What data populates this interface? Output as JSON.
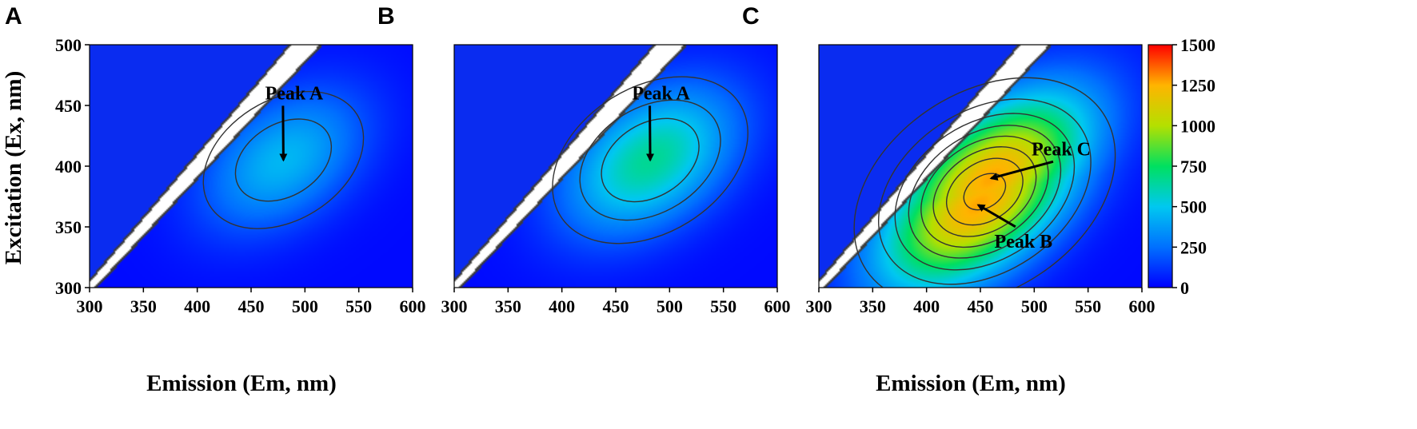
{
  "chart_data": [
    {
      "type": "heatmap",
      "panel_label": "A",
      "title": "",
      "xlabel": "Emission (Em, nm)",
      "ylabel": "Excitation (Ex, nm)",
      "xlim": [
        300,
        600
      ],
      "ylim": [
        300,
        500
      ],
      "xticks": [
        "300",
        "350",
        "400",
        "450",
        "500",
        "550",
        "600"
      ],
      "yticks": [
        "300",
        "350",
        "400",
        "450",
        "500"
      ],
      "peaks": [
        {
          "name": "Peak A",
          "em": 480,
          "ex": 405,
          "intensity": 430,
          "sigma_em": 52,
          "sigma_ex": 40,
          "tilt": 0.4,
          "label_em": 490,
          "label_ex": 455
        }
      ],
      "contour_levels": [
        150,
        300
      ]
    },
    {
      "type": "heatmap",
      "panel_label": "B",
      "title": "",
      "xlabel": "",
      "ylabel": "",
      "xlim": [
        300,
        600
      ],
      "ylim": [
        300,
        500
      ],
      "xticks": [
        "300",
        "350",
        "400",
        "450",
        "500",
        "550",
        "600"
      ],
      "yticks": [],
      "peaks": [
        {
          "name": "Peak A",
          "em": 482,
          "ex": 405,
          "intensity": 640,
          "sigma_em": 55,
          "sigma_ex": 42,
          "tilt": 0.4,
          "label_em": 492,
          "label_ex": 455
        }
      ],
      "contour_levels": [
        150,
        300,
        450
      ]
    },
    {
      "type": "heatmap",
      "panel_label": "C",
      "title": "",
      "xlabel": "Emission (Em, nm)",
      "ylabel": "",
      "xlim": [
        300,
        600
      ],
      "ylim": [
        300,
        500
      ],
      "xticks": [
        "300",
        "350",
        "400",
        "450",
        "500",
        "550",
        "600"
      ],
      "yticks": [],
      "peaks": [
        {
          "name": "Peak C",
          "em": 460,
          "ex": 390,
          "intensity": 1250,
          "sigma_em": 62,
          "sigma_ex": 48,
          "tilt": 0.55,
          "label_em": 525,
          "label_ex": 409
        },
        {
          "name": "Peak B",
          "em": 448,
          "ex": 368,
          "intensity": 1250,
          "sigma_em": 62,
          "sigma_ex": 48,
          "tilt": 0.55,
          "label_em": 490,
          "label_ex": 333
        }
      ],
      "contour_levels": [
        150,
        300,
        450,
        600,
        750,
        900,
        1050,
        1200
      ]
    }
  ],
  "colorbar": {
    "min": 0,
    "max": 1500,
    "ticks": [
      "0",
      "250",
      "500",
      "750",
      "1000",
      "1250",
      "1500"
    ],
    "colors": [
      "#0000ff",
      "#0070ff",
      "#00c8f0",
      "#00e060",
      "#b4e000",
      "#ffb400",
      "#ff0000"
    ]
  },
  "background_color": "#0a2cf0",
  "scatter_band_color": "#ffffff"
}
